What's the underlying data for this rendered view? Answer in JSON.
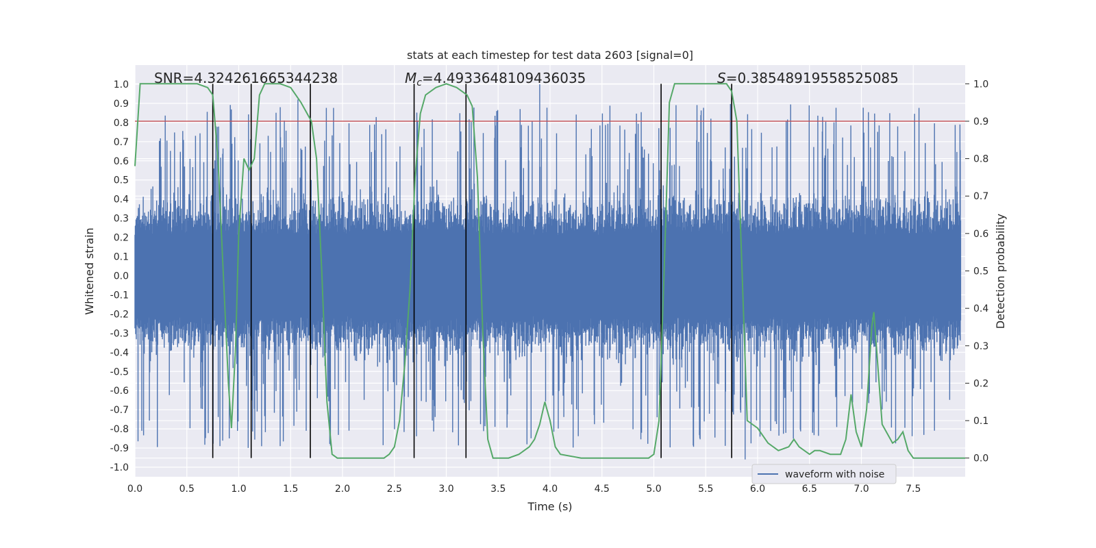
{
  "chart_data": {
    "type": "line",
    "title": "stats at each timestep for test data 2603 [signal=0]",
    "xlabel": "Time (s)",
    "ylabel": "Whitened strain",
    "y2label": "Detection probability",
    "xlim": [
      0,
      8
    ],
    "ylim": [
      -1.05,
      1.1
    ],
    "y2lim": [
      -0.05,
      1.05
    ],
    "x_ticks": [
      0.0,
      0.5,
      1.0,
      1.5,
      2.0,
      2.5,
      3.0,
      3.5,
      4.0,
      4.5,
      5.0,
      5.5,
      6.0,
      6.5,
      7.0,
      7.5
    ],
    "x_tick_labels": [
      "0.0",
      "0.5",
      "1.0",
      "1.5",
      "2.0",
      "2.5",
      "3.0",
      "3.5",
      "4.0",
      "4.5",
      "5.0",
      "5.5",
      "6.0",
      "6.5",
      "7.0",
      "7.5"
    ],
    "y_ticks": [
      1.0,
      0.9,
      0.8,
      0.7,
      0.6,
      0.5,
      0.4,
      0.3,
      0.2,
      0.1,
      0.0,
      -0.1,
      -0.2,
      -0.3,
      -0.4,
      -0.5,
      -0.6,
      -0.7,
      -0.8,
      -0.9,
      -1.0
    ],
    "y_tick_labels": [
      "1.0",
      "0.9",
      "0.8",
      "0.7",
      "0.6",
      "0.5",
      "0.4",
      "0.3",
      "0.2",
      "0.1",
      "0.0",
      "-0.1",
      "-0.2",
      "-0.3",
      "-0.4",
      "-0.5",
      "-0.6",
      "-0.7",
      "-0.8",
      "-0.9",
      "-1.0"
    ],
    "y2_ticks": [
      1.0,
      0.9,
      0.8,
      0.7,
      0.6,
      0.5,
      0.4,
      0.3,
      0.2,
      0.1,
      0.0
    ],
    "y2_tick_labels": [
      "1.0",
      "0.9",
      "0.8",
      "0.7",
      "0.6",
      "0.5",
      "0.4",
      "0.3",
      "0.2",
      "0.1",
      "0.0"
    ],
    "grid": true,
    "legend": {
      "placement": "lower-right",
      "entries": [
        "waveform with noise"
      ]
    },
    "annotations": {
      "snr": "SNR=4.324261665344238",
      "mc_symbol": "M",
      "mc_sub": "c",
      "mc_value": "=4.4933648109436035",
      "s_symbol": "S",
      "s_value": "=0.38548919558525085"
    },
    "series": [
      {
        "name": "waveform with noise",
        "axis": "left",
        "color": "#4c72b0",
        "style": "noise",
        "typical_amplitude": 0.35,
        "peak_amplitude": 1.0
      },
      {
        "axis": "right",
        "color": "#55a868",
        "x": [
          0.0,
          0.05,
          0.1,
          0.2,
          0.3,
          0.4,
          0.5,
          0.6,
          0.7,
          0.75,
          0.8,
          0.85,
          0.9,
          0.93,
          0.97,
          1.0,
          1.05,
          1.1,
          1.15,
          1.2,
          1.25,
          1.3,
          1.4,
          1.5,
          1.6,
          1.7,
          1.75,
          1.8,
          1.85,
          1.9,
          1.95,
          2.0,
          2.1,
          2.2,
          2.3,
          2.35,
          2.4,
          2.45,
          2.5,
          2.55,
          2.6,
          2.65,
          2.7,
          2.75,
          2.8,
          2.9,
          3.0,
          3.1,
          3.15,
          3.2,
          3.25,
          3.3,
          3.35,
          3.4,
          3.45,
          3.5,
          3.6,
          3.7,
          3.8,
          3.85,
          3.9,
          3.95,
          4.0,
          4.05,
          4.1,
          4.3,
          4.45,
          4.55,
          4.7,
          4.85,
          4.95,
          5.0,
          5.05,
          5.1,
          5.15,
          5.2,
          5.3,
          5.4,
          5.5,
          5.6,
          5.7,
          5.75,
          5.8,
          5.85,
          5.9,
          5.95,
          6.0,
          6.1,
          6.2,
          6.3,
          6.35,
          6.4,
          6.5,
          6.55,
          6.6,
          6.7,
          6.8,
          6.85,
          6.9,
          6.95,
          7.0,
          7.05,
          7.1,
          7.12,
          7.2,
          7.3,
          7.35,
          7.4,
          7.45,
          7.5,
          7.6,
          7.75,
          7.9,
          8.0
        ],
        "y": [
          0.78,
          1.0,
          1.0,
          1.0,
          1.0,
          1.0,
          1.0,
          1.0,
          0.99,
          0.97,
          0.8,
          0.5,
          0.2,
          0.08,
          0.3,
          0.6,
          0.8,
          0.77,
          0.8,
          0.97,
          1.0,
          1.0,
          1.0,
          0.99,
          0.95,
          0.9,
          0.8,
          0.5,
          0.15,
          0.01,
          0.0,
          0.0,
          0.0,
          0.0,
          0.0,
          0.0,
          0.0,
          0.01,
          0.03,
          0.1,
          0.25,
          0.45,
          0.75,
          0.92,
          0.97,
          0.99,
          1.0,
          0.99,
          0.98,
          0.97,
          0.94,
          0.75,
          0.35,
          0.05,
          0.0,
          0.0,
          0.0,
          0.01,
          0.03,
          0.05,
          0.09,
          0.15,
          0.1,
          0.03,
          0.01,
          0.0,
          0.0,
          0.0,
          0.0,
          0.0,
          0.0,
          0.01,
          0.1,
          0.5,
          0.95,
          1.0,
          1.0,
          1.0,
          1.0,
          1.0,
          1.0,
          0.98,
          0.9,
          0.5,
          0.1,
          0.09,
          0.08,
          0.04,
          0.02,
          0.03,
          0.05,
          0.03,
          0.01,
          0.02,
          0.02,
          0.01,
          0.01,
          0.05,
          0.17,
          0.07,
          0.03,
          0.13,
          0.35,
          0.39,
          0.09,
          0.04,
          0.05,
          0.07,
          0.02,
          0.0,
          0.0,
          0.0,
          0.0,
          0.0
        ]
      }
    ],
    "threshold": {
      "axis": "right",
      "value": 0.9,
      "color": "#c44e52"
    },
    "vlines": [
      0.75,
      1.12,
      1.69,
      2.69,
      3.19,
      5.07,
      5.75
    ]
  }
}
